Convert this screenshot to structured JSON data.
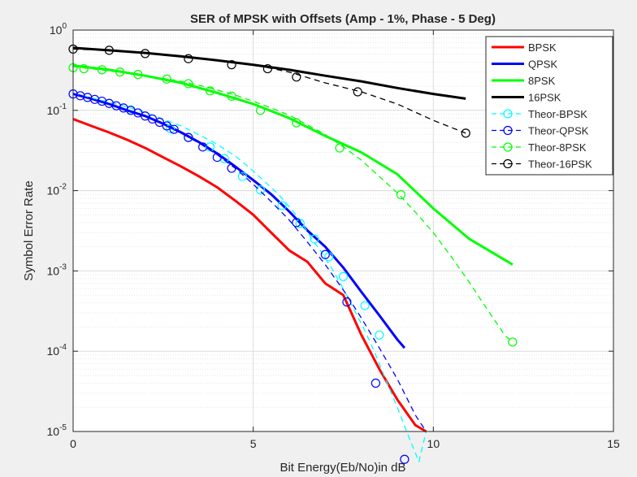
{
  "chart_data": {
    "type": "line",
    "title": "SER of MPSK with Offsets (Amp - 1%, Phase - 5 Deg)",
    "xlabel": "Bit Energy(Eb/No)in dB",
    "ylabel": "Symbol Error Rate",
    "xlim": [
      0,
      15
    ],
    "ylim": [
      1e-05,
      1
    ],
    "yscale": "log",
    "grid": true,
    "minor_grid": true,
    "legend_position": "top-right",
    "x_ticks": [
      "0",
      "5",
      "10",
      "15"
    ],
    "y_ticks": [
      {
        "base": "10",
        "exp": "-5"
      },
      {
        "base": "10",
        "exp": "-4"
      },
      {
        "base": "10",
        "exp": "-3"
      },
      {
        "base": "10",
        "exp": "-2"
      },
      {
        "base": "10",
        "exp": "-1"
      },
      {
        "base": "10",
        "exp": "0"
      }
    ],
    "series": [
      {
        "name": "BPSK",
        "color": "#ff0000",
        "style": "solid",
        "marker": "none",
        "x": [
          0,
          0.5,
          1,
          1.5,
          2,
          2.5,
          3,
          3.5,
          4,
          4.5,
          5,
          5.5,
          6,
          6.5,
          7,
          7.5,
          8,
          8.5,
          9,
          9.5,
          9.8
        ],
        "y": [
          0.078,
          0.064,
          0.053,
          0.043,
          0.034,
          0.026,
          0.02,
          0.015,
          0.011,
          0.0075,
          0.005,
          0.003,
          0.0018,
          0.0013,
          0.0007,
          0.0005,
          0.00016,
          6e-05,
          2.5e-05,
          1.2e-05,
          1e-05
        ]
      },
      {
        "name": "QPSK",
        "color": "#0000ff",
        "style": "solid",
        "marker": "none",
        "x": [
          0,
          0.5,
          1,
          1.5,
          2,
          2.5,
          3,
          3.5,
          4,
          4.5,
          5,
          5.5,
          6,
          6.5,
          7,
          7.5,
          8,
          8.5,
          9,
          9.2
        ],
        "y": [
          0.16,
          0.14,
          0.12,
          0.1,
          0.085,
          0.068,
          0.053,
          0.04,
          0.029,
          0.02,
          0.0135,
          0.009,
          0.0055,
          0.0032,
          0.002,
          0.0011,
          0.00055,
          0.00028,
          0.00014,
          0.00011
        ]
      },
      {
        "name": "8PSK",
        "color": "#00ff00",
        "style": "solid",
        "marker": "none",
        "x": [
          0,
          1,
          2,
          3,
          4,
          5,
          6,
          7,
          8,
          9,
          10,
          11,
          12.2
        ],
        "y": [
          0.36,
          0.32,
          0.27,
          0.22,
          0.165,
          0.12,
          0.08,
          0.048,
          0.03,
          0.016,
          0.006,
          0.0025,
          0.0012
        ]
      },
      {
        "name": "16PSK",
        "color": "#000000",
        "style": "solid",
        "marker": "none",
        "x": [
          0,
          1,
          2,
          3,
          4,
          5,
          6,
          7,
          8,
          9,
          10,
          10.9
        ],
        "y": [
          0.6,
          0.56,
          0.52,
          0.47,
          0.42,
          0.37,
          0.32,
          0.27,
          0.23,
          0.19,
          0.16,
          0.14
        ]
      },
      {
        "name": "Theor-BPSK",
        "color": "#00ffff",
        "style": "dashed",
        "marker": "circle",
        "x": [
          0,
          0.3,
          0.6,
          0.9,
          1.2,
          1.5,
          1.8,
          2.1,
          2.4,
          2.7,
          3,
          3.3,
          3.6,
          3.9,
          4.2,
          4.5,
          4.8,
          5.1,
          5.4,
          5.7,
          6,
          6.3,
          6.6,
          6.9,
          7.2,
          7.5,
          7.8,
          8.1,
          8.4,
          8.7,
          9,
          9.3,
          9.6,
          9.8
        ],
        "y": [
          0.16,
          0.15,
          0.14,
          0.13,
          0.12,
          0.11,
          0.1,
          0.091,
          0.081,
          0.072,
          0.064,
          0.055,
          0.047,
          0.04,
          0.033,
          0.027,
          0.021,
          0.016,
          0.012,
          0.009,
          0.0063,
          0.0043,
          0.0026,
          0.0017,
          0.00104,
          0.0006,
          0.00033,
          0.00018,
          9e-05,
          4.2e-05,
          2e-05,
          9e-06,
          4.2e-06,
          1e-05
        ],
        "marker_x": [
          1.6,
          2.7,
          3.2,
          3.8,
          4.2,
          4.7,
          5.2,
          5.8,
          6.3,
          6.7,
          7.1,
          7.5,
          8.1,
          8.5
        ],
        "marker_y": [
          0.101,
          0.059,
          0.046,
          0.035,
          0.025,
          0.015,
          0.0102,
          0.0065,
          0.0039,
          0.0025,
          0.0015,
          0.00085,
          0.00037,
          0.000159
        ]
      },
      {
        "name": "Theor-QPSK",
        "color": "#0000ff",
        "style": "dashed",
        "marker": "circle",
        "x": [
          0,
          0.5,
          1,
          1.5,
          2,
          2.5,
          3,
          3.5,
          4,
          4.5,
          5,
          5.5,
          6,
          6.5,
          7,
          7.5,
          8,
          8.5,
          9,
          9.5,
          9.8
        ],
        "y": [
          0.16,
          0.14,
          0.12,
          0.1,
          0.084,
          0.067,
          0.052,
          0.039,
          0.028,
          0.019,
          0.012,
          0.0073,
          0.0043,
          0.0023,
          0.0012,
          0.00058,
          0.00026,
          0.00011,
          4.5e-05,
          1.6e-05,
          1e-05
        ],
        "marker_x": [
          0,
          0.2,
          0.4,
          0.6,
          0.8,
          1,
          1.2,
          1.4,
          1.6,
          1.8,
          2,
          2.2,
          2.4,
          2.6,
          2.8,
          3.2,
          3.6,
          4,
          4.4,
          6.2,
          7,
          7.6,
          8.4,
          9.2
        ],
        "marker_y": [
          0.16,
          0.152,
          0.145,
          0.137,
          0.13,
          0.122,
          0.114,
          0.107,
          0.1,
          0.093,
          0.085,
          0.078,
          0.071,
          0.064,
          0.058,
          0.046,
          0.035,
          0.026,
          0.019,
          0.004,
          0.0016,
          0.00041,
          4e-05,
          4.5e-06
        ]
      },
      {
        "name": "Theor-8PSK",
        "color": "#00ff00",
        "style": "dashed",
        "marker": "circle",
        "x": [
          0,
          0.5,
          1,
          1.5,
          2,
          2.5,
          3,
          3.5,
          4,
          4.5,
          5,
          5.5,
          6,
          6.5,
          7,
          7.5,
          8,
          8.5,
          9,
          9.5,
          10,
          10.5,
          11,
          11.5,
          12,
          12.2
        ],
        "y": [
          0.35,
          0.33,
          0.31,
          0.29,
          0.27,
          0.25,
          0.23,
          0.205,
          0.18,
          0.155,
          0.13,
          0.107,
          0.087,
          0.066,
          0.05,
          0.035,
          0.024,
          0.015,
          0.0094,
          0.0054,
          0.003,
          0.0015,
          0.00072,
          0.00033,
          0.000155,
          0.00013
        ],
        "marker_x": [
          0,
          0.3,
          0.8,
          1.3,
          1.8,
          2.6,
          3.2,
          3.8,
          4.4,
          5.2,
          6.2,
          7.4,
          9.1,
          12.2
        ],
        "marker_y": [
          0.34,
          0.33,
          0.32,
          0.3,
          0.28,
          0.245,
          0.215,
          0.175,
          0.15,
          0.1,
          0.07,
          0.034,
          0.0089,
          0.00013
        ]
      },
      {
        "name": "Theor-16PSK",
        "color": "#000000",
        "style": "dashed",
        "marker": "circle",
        "x": [
          0,
          1,
          2,
          3,
          4,
          5,
          6,
          7,
          8,
          9,
          10,
          10.9
        ],
        "y": [
          0.58,
          0.56,
          0.52,
          0.47,
          0.42,
          0.37,
          0.3,
          0.22,
          0.17,
          0.12,
          0.075,
          0.052
        ],
        "marker_x": [
          0,
          1,
          2,
          3.2,
          4.4,
          5.4,
          6.2,
          7.9,
          10.9
        ],
        "marker_y": [
          0.58,
          0.56,
          0.51,
          0.44,
          0.37,
          0.33,
          0.26,
          0.17,
          0.052
        ]
      }
    ]
  }
}
